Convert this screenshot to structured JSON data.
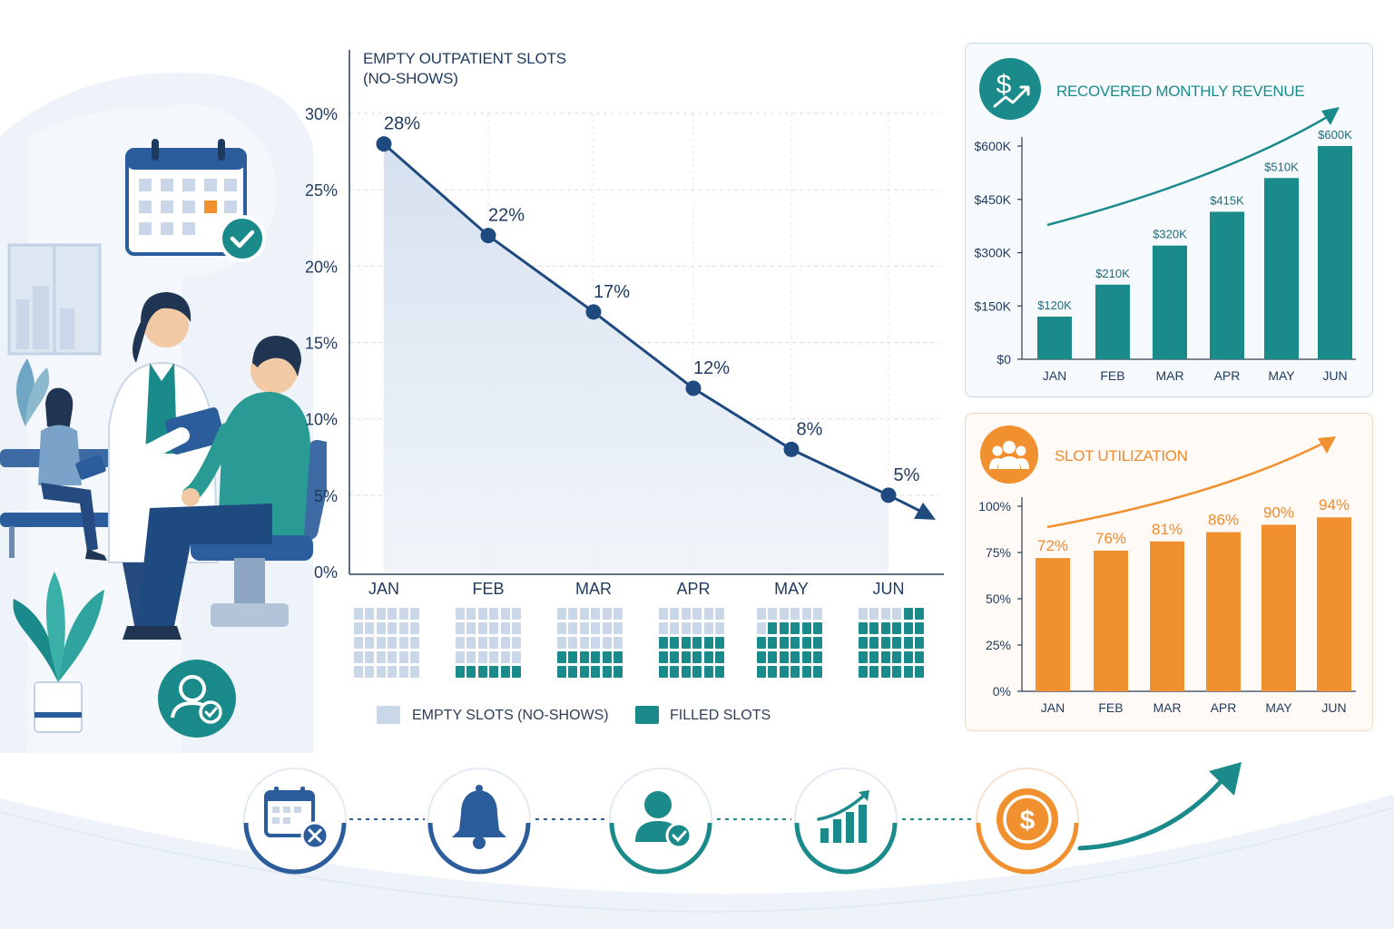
{
  "line_chart": {
    "title_lines": [
      "EMPTY OUTPATIENT SLOTS",
      "(NO-SHOWS)"
    ],
    "legend": [
      {
        "label": "EMPTY SLOTS (NO-SHOWS)",
        "color": "#c9d7e8"
      },
      {
        "label": "FILLED SLOTS",
        "color": "#1b8a8a"
      }
    ]
  },
  "chart_data": [
    {
      "type": "line",
      "title": "EMPTY OUTPATIENT SLOTS (NO-SHOWS)",
      "categories": [
        "JAN",
        "FEB",
        "MAR",
        "APR",
        "MAY",
        "JUN"
      ],
      "values": [
        28,
        22,
        17,
        12,
        8,
        5
      ],
      "data_labels": [
        "28%",
        "22%",
        "17%",
        "12%",
        "8%",
        "5%"
      ],
      "y_ticks": [
        "0%",
        "5%",
        "10%",
        "15%",
        "20%",
        "25%",
        "30%"
      ],
      "ylim": [
        0,
        30
      ],
      "grid": true,
      "line_color": "#1f4a80",
      "filled_slots_per_month": [
        0,
        6,
        12,
        18,
        23,
        26
      ],
      "slots_per_month": 30
    },
    {
      "type": "bar",
      "title": "RECOVERED MONTHLY REVENUE",
      "categories": [
        "JAN",
        "FEB",
        "MAR",
        "APR",
        "MAY",
        "JUN"
      ],
      "values": [
        120,
        210,
        320,
        415,
        510,
        600
      ],
      "data_labels": [
        "$120K",
        "$210K",
        "$320K",
        "$415K",
        "$510K",
        "$600K"
      ],
      "y_ticks": [
        "$0",
        "$150K",
        "$300K",
        "$450K",
        "$600K"
      ],
      "ylim": [
        0,
        600
      ],
      "color": "#1b8a8a"
    },
    {
      "type": "bar",
      "title": "SLOT UTILIZATION",
      "categories": [
        "JAN",
        "FEB",
        "MAR",
        "APR",
        "MAY",
        "JUN"
      ],
      "values": [
        72,
        76,
        81,
        86,
        90,
        94
      ],
      "data_labels": [
        "72%",
        "76%",
        "81%",
        "86%",
        "90%",
        "94%"
      ],
      "y_ticks": [
        "0%",
        "25%",
        "50%",
        "75%",
        "100%"
      ],
      "ylim": [
        0,
        100
      ],
      "color": "#f0902f"
    }
  ],
  "revenue_panel": {
    "title": "RECOVERED MONTHLY REVENUE",
    "icon": "dollar-growth-icon"
  },
  "utilization_panel": {
    "title": "SLOT UTILIZATION",
    "icon": "group-icon"
  },
  "process_steps": [
    {
      "icon": "calendar-cancel-icon",
      "color": "#2b5c9b"
    },
    {
      "icon": "bell-icon",
      "color": "#2b5c9b"
    },
    {
      "icon": "user-check-icon",
      "color": "#1b8a8a"
    },
    {
      "icon": "bar-growth-icon",
      "color": "#1b8a8a"
    },
    {
      "icon": "dollar-coin-icon",
      "color": "#f0902f"
    }
  ],
  "illustration": {
    "scene": "doctor-patient-consultation",
    "badges": [
      "calendar-check-icon",
      "user-check-icon"
    ]
  }
}
